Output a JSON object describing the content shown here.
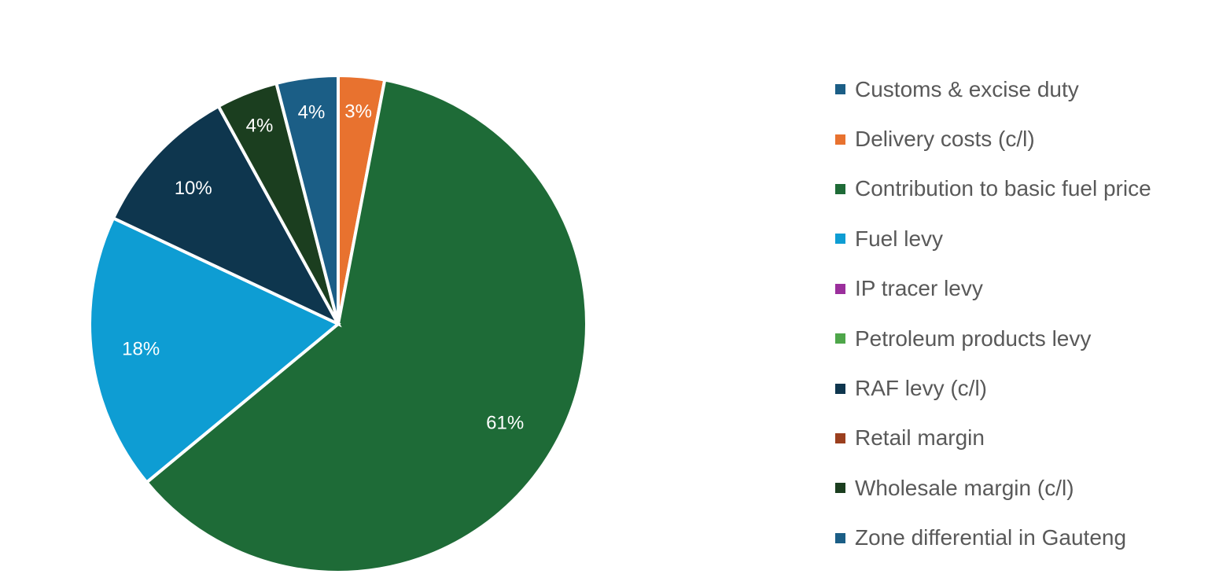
{
  "chart_data": {
    "type": "pie",
    "title": "",
    "start_angle": "12 o'clock",
    "direction": "clockwise",
    "legend_position": "right",
    "series": [
      {
        "name": "Customs & excise duty",
        "value": 0,
        "label": "",
        "color": "#1B5E86"
      },
      {
        "name": "Delivery costs (c/l)",
        "value": 3,
        "label": "3%",
        "color": "#E8722F"
      },
      {
        "name": "Contribution to basic fuel price",
        "value": 61,
        "label": "61%",
        "color": "#1E6B37"
      },
      {
        "name": "Fuel levy",
        "value": 18,
        "label": "18%",
        "color": "#0E9DD3"
      },
      {
        "name": "IP  tracer levy",
        "value": 0,
        "label": "",
        "color": "#9B2F9C"
      },
      {
        "name": "Petroleum products levy",
        "value": 0,
        "label": "",
        "color": "#4EA64A"
      },
      {
        "name": "RAF levy (c/l)",
        "value": 10,
        "label": "10%",
        "color": "#0E364E"
      },
      {
        "name": "Retail margin",
        "value": 0,
        "label": "",
        "color": "#9B3F1E"
      },
      {
        "name": "Wholesale margin (c/l)",
        "value": 4,
        "label": "4%",
        "color": "#1B3E1F"
      },
      {
        "name": "Zone differential in Gauteng",
        "value": 4,
        "label": "4%",
        "color": "#1B5E86"
      }
    ]
  }
}
